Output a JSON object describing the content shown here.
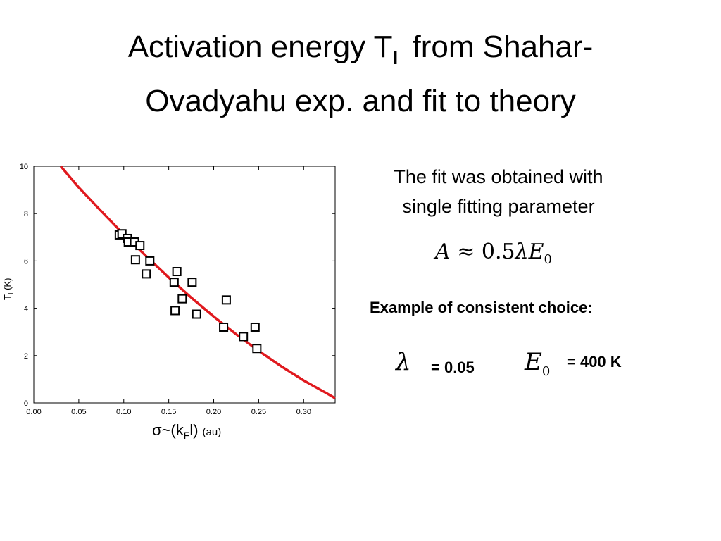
{
  "slide": {
    "title_part1": "Activation energy T",
    "title_subscript": "I",
    "title_part2": "from Shahar-",
    "title_line2": "Ovadyahu  exp. and fit to theory",
    "fit_line1": "The fit was obtained with",
    "fit_line2": "single fitting parameter",
    "formula_a": "A",
    "formula_approx": "≈",
    "formula_num": "0.5",
    "formula_lambda": "λ",
    "formula_e": "E",
    "formula_sub": "0",
    "example_heading": "Example of consistent choice:",
    "lambda_symbol": "λ",
    "lambda_value": "= 0.05",
    "e0_symbol": "E",
    "e0_sub": "0",
    "e0_value": "= 400 K"
  },
  "chart_data": {
    "type": "scatter",
    "xlim": [
      0,
      0.335
    ],
    "ylim": [
      0,
      10
    ],
    "x_ticks": [
      "0.00",
      "0.05",
      "0.10",
      "0.15",
      "0.20",
      "0.25",
      "0.30"
    ],
    "y_ticks": [
      "0",
      "2",
      "4",
      "6",
      "8",
      "10"
    ],
    "ylabel": "T",
    "ylabel_sub": "I",
    "ylabel_unit": "(K)",
    "xlabel_main": "σ~(k",
    "xlabel_sub": "F",
    "xlabel_end": "l)",
    "xlabel_unit": "(au)",
    "fit_color": "#e0191e",
    "series": [
      {
        "type": "scatter",
        "marker": "open-square",
        "x": [
          0.095,
          0.098,
          0.104,
          0.105,
          0.112,
          0.118,
          0.113,
          0.129,
          0.125,
          0.159,
          0.156,
          0.157,
          0.176,
          0.165,
          0.181,
          0.214,
          0.211,
          0.233,
          0.246,
          0.248
        ],
        "y": [
          7.1,
          7.15,
          6.95,
          6.8,
          6.8,
          6.65,
          6.05,
          6.0,
          5.45,
          5.55,
          5.1,
          3.9,
          5.1,
          4.4,
          3.75,
          4.35,
          3.2,
          2.8,
          3.2,
          2.3
        ]
      },
      {
        "type": "line",
        "x": [
          0.03,
          0.05,
          0.075,
          0.1,
          0.125,
          0.15,
          0.175,
          0.2,
          0.225,
          0.25,
          0.275,
          0.3,
          0.325,
          0.335
        ],
        "y": [
          10.0,
          9.1,
          8.1,
          7.12,
          6.2,
          5.3,
          4.45,
          3.65,
          2.9,
          2.2,
          1.55,
          0.95,
          0.42,
          0.2
        ]
      }
    ]
  }
}
